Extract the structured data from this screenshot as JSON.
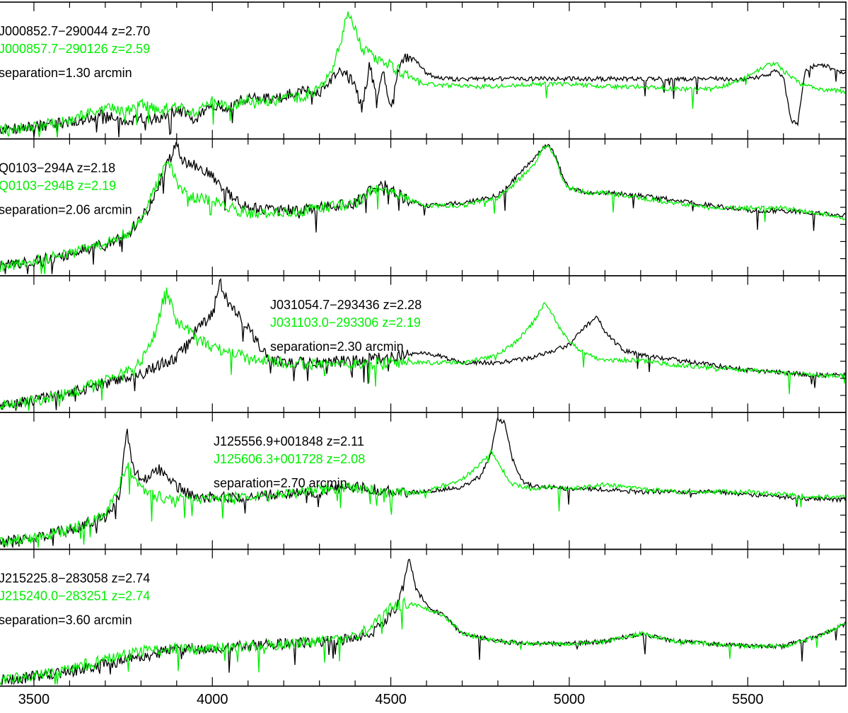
{
  "chart_data": {
    "type": "line",
    "xlabel": "",
    "ylabel": "",
    "xlim": [
      3405,
      5775
    ],
    "x_ticks_major": [
      3500,
      4000,
      4500,
      5000,
      5500
    ],
    "x_tick_labels": [
      "3500",
      "4000",
      "4500",
      "5000",
      "5500"
    ],
    "x_ticks_minor_step": 100,
    "y_scale": "relative flux within each panel, 0 to 1 (no y scale is printed)",
    "grid": false,
    "colors": {
      "primary": "#000000",
      "secondary": "#00ee00",
      "axes": "#000000"
    },
    "panels": [
      {
        "label_rows": {
          "row1": "J000852.7−290044   z=2.70",
          "row2": "J000857.7−290126   z=2.59",
          "row3": "separation=1.30 arcmin"
        },
        "series": [
          {
            "color": "#000000",
            "x": [
              3405,
              3500,
              3600,
              3700,
              3760,
              3800,
              3850,
              3900,
              3950,
              4000,
              4050,
              4100,
              4150,
              4200,
              4250,
              4300,
              4340,
              4370,
              4400,
              4420,
              4440,
              4460,
              4480,
              4500,
              4520,
              4540,
              4560,
              4600,
              4650,
              4700,
              4800,
              4900,
              5000,
              5100,
              5200,
              5300,
              5400,
              5500,
              5540,
              5580,
              5600,
              5620,
              5640,
              5660,
              5700,
              5775
            ],
            "y": [
              0.04,
              0.06,
              0.1,
              0.16,
              0.08,
              0.14,
              0.12,
              0.2,
              0.14,
              0.24,
              0.22,
              0.3,
              0.28,
              0.3,
              0.36,
              0.32,
              0.46,
              0.5,
              0.38,
              0.2,
              0.55,
              0.3,
              0.48,
              0.2,
              0.5,
              0.6,
              0.62,
              0.48,
              0.44,
              0.44,
              0.44,
              0.44,
              0.44,
              0.44,
              0.44,
              0.44,
              0.44,
              0.44,
              0.46,
              0.5,
              0.46,
              0.12,
              0.08,
              0.5,
              0.56,
              0.48
            ]
          },
          {
            "color": "#00ee00",
            "x": [
              3405,
              3500,
              3600,
              3700,
              3760,
              3800,
              3850,
              3900,
              3950,
              4000,
              4050,
              4100,
              4150,
              4200,
              4250,
              4300,
              4330,
              4360,
              4380,
              4400,
              4420,
              4450,
              4500,
              4550,
              4600,
              4700,
              4800,
              4900,
              5000,
              5100,
              5200,
              5300,
              5400,
              5450,
              5500,
              5550,
              5580,
              5600,
              5650,
              5700,
              5775
            ],
            "y": [
              0.04,
              0.06,
              0.12,
              0.22,
              0.18,
              0.24,
              0.2,
              0.22,
              0.18,
              0.26,
              0.22,
              0.28,
              0.26,
              0.28,
              0.3,
              0.36,
              0.48,
              0.72,
              1.0,
              0.84,
              0.68,
              0.62,
              0.55,
              0.46,
              0.4,
              0.38,
              0.38,
              0.4,
              0.4,
              0.38,
              0.38,
              0.36,
              0.36,
              0.4,
              0.46,
              0.54,
              0.56,
              0.5,
              0.4,
              0.36,
              0.34
            ]
          }
        ]
      },
      {
        "label_rows": {
          "row1": "Q0103−294A   z=2.18",
          "row2": "Q0103−294B   z=2.19",
          "row3": "separation=2.06 arcmin"
        },
        "series": [
          {
            "color": "#000000",
            "x": [
              3405,
              3500,
              3600,
              3700,
              3760,
              3800,
              3830,
              3860,
              3880,
              3900,
              3920,
              3950,
              4000,
              4050,
              4100,
              4200,
              4300,
              4400,
              4450,
              4480,
              4500,
              4550,
              4600,
              4700,
              4800,
              4850,
              4900,
              4920,
              4940,
              4960,
              4980,
              5000,
              5050,
              5100,
              5200,
              5300,
              5400,
              5500,
              5600,
              5700,
              5775
            ],
            "y": [
              0.04,
              0.08,
              0.14,
              0.22,
              0.3,
              0.42,
              0.54,
              0.76,
              0.88,
              1.0,
              0.86,
              0.84,
              0.76,
              0.6,
              0.5,
              0.48,
              0.5,
              0.54,
              0.66,
              0.68,
              0.64,
              0.56,
              0.52,
              0.54,
              0.6,
              0.74,
              0.88,
              0.96,
              1.0,
              0.92,
              0.76,
              0.66,
              0.62,
              0.62,
              0.6,
              0.56,
              0.52,
              0.48,
              0.48,
              0.46,
              0.44
            ]
          },
          {
            "color": "#00ee00",
            "x": [
              3405,
              3500,
              3600,
              3700,
              3760,
              3800,
              3830,
              3860,
              3880,
              3900,
              3920,
              3950,
              4000,
              4050,
              4100,
              4200,
              4300,
              4400,
              4450,
              4480,
              4500,
              4550,
              4600,
              4700,
              4800,
              4850,
              4900,
              4920,
              4940,
              4960,
              4980,
              5000,
              5050,
              5100,
              5200,
              5300,
              5400,
              5500,
              5600,
              5700,
              5775
            ],
            "y": [
              0.04,
              0.08,
              0.14,
              0.22,
              0.3,
              0.42,
              0.6,
              0.8,
              0.86,
              0.7,
              0.62,
              0.58,
              0.56,
              0.5,
              0.46,
              0.46,
              0.5,
              0.54,
              0.64,
              0.66,
              0.62,
              0.56,
              0.52,
              0.52,
              0.58,
              0.7,
              0.84,
              0.94,
              1.0,
              0.9,
              0.72,
              0.66,
              0.62,
              0.62,
              0.58,
              0.54,
              0.5,
              0.5,
              0.5,
              0.46,
              0.42
            ]
          }
        ]
      },
      {
        "label_rows": {
          "row1": "J031054.7−293436   z=2.28",
          "row2": "J031103.0−293306   z=2.19",
          "row3": "separation=2.30 arcmin"
        },
        "series": [
          {
            "color": "#000000",
            "x": [
              3405,
              3500,
              3600,
              3700,
              3800,
              3850,
              3900,
              3950,
              4000,
              4020,
              4050,
              4100,
              4150,
              4200,
              4300,
              4400,
              4500,
              4600,
              4700,
              4800,
              4900,
              5000,
              5050,
              5080,
              5100,
              5150,
              5200,
              5300,
              5400,
              5500,
              5600,
              5700,
              5775
            ],
            "y": [
              0.02,
              0.06,
              0.12,
              0.2,
              0.26,
              0.34,
              0.4,
              0.6,
              0.74,
              1.0,
              0.8,
              0.64,
              0.42,
              0.36,
              0.36,
              0.38,
              0.4,
              0.44,
              0.36,
              0.36,
              0.4,
              0.5,
              0.66,
              0.72,
              0.6,
              0.46,
              0.42,
              0.38,
              0.34,
              0.3,
              0.28,
              0.26,
              0.26
            ]
          },
          {
            "color": "#00ee00",
            "x": [
              3405,
              3500,
              3600,
              3700,
              3800,
              3840,
              3870,
              3880,
              3900,
              3950,
              4000,
              4100,
              4200,
              4300,
              4400,
              4500,
              4600,
              4700,
              4800,
              4850,
              4900,
              4930,
              4950,
              4980,
              5000,
              5050,
              5100,
              5200,
              5300,
              5400,
              5500,
              5600,
              5700,
              5775
            ],
            "y": [
              0.02,
              0.06,
              0.12,
              0.22,
              0.36,
              0.6,
              0.94,
              0.86,
              0.68,
              0.58,
              0.48,
              0.4,
              0.36,
              0.34,
              0.34,
              0.36,
              0.36,
              0.36,
              0.42,
              0.52,
              0.68,
              0.82,
              0.76,
              0.6,
              0.52,
              0.42,
              0.38,
              0.38,
              0.34,
              0.32,
              0.3,
              0.28,
              0.26,
              0.26
            ]
          }
        ]
      },
      {
        "label_rows": {
          "row1": "J125556.9+001848   z=2.11",
          "row2": "J125606.3+001728   z=2.08",
          "row3": "separation=2.70 arcmin"
        },
        "series": [
          {
            "color": "#000000",
            "x": [
              3405,
              3500,
              3600,
              3700,
              3740,
              3760,
              3780,
              3800,
              3850,
              3900,
              3950,
              4000,
              4100,
              4200,
              4300,
              4400,
              4500,
              4600,
              4700,
              4750,
              4780,
              4800,
              4820,
              4840,
              4870,
              4900,
              4950,
              5000,
              5100,
              5200,
              5300,
              5400,
              5500,
              5600,
              5700,
              5775
            ],
            "y": [
              0.02,
              0.06,
              0.12,
              0.22,
              0.4,
              0.9,
              0.6,
              0.5,
              0.6,
              0.46,
              0.38,
              0.38,
              0.38,
              0.4,
              0.42,
              0.46,
              0.42,
              0.42,
              0.46,
              0.54,
              0.72,
              1.0,
              0.96,
              0.68,
              0.5,
              0.46,
              0.46,
              0.44,
              0.44,
              0.42,
              0.42,
              0.42,
              0.4,
              0.38,
              0.36,
              0.36
            ]
          },
          {
            "color": "#00ee00",
            "x": [
              3405,
              3500,
              3600,
              3700,
              3740,
              3760,
              3780,
              3800,
              3850,
              3900,
              3950,
              4000,
              4100,
              4200,
              4300,
              4400,
              4500,
              4600,
              4700,
              4750,
              4780,
              4800,
              4820,
              4840,
              4870,
              4900,
              4950,
              5000,
              5100,
              5200,
              5300,
              5400,
              5500,
              5600,
              5700,
              5775
            ],
            "y": [
              0.02,
              0.06,
              0.12,
              0.24,
              0.46,
              0.64,
              0.52,
              0.44,
              0.38,
              0.36,
              0.36,
              0.36,
              0.38,
              0.4,
              0.44,
              0.46,
              0.4,
              0.42,
              0.52,
              0.64,
              0.74,
              0.66,
              0.56,
              0.48,
              0.46,
              0.44,
              0.46,
              0.44,
              0.48,
              0.44,
              0.42,
              0.42,
              0.42,
              0.4,
              0.38,
              0.38
            ]
          }
        ]
      },
      {
        "label_rows": {
          "row1": "J215225.8−283058   z=2.74",
          "row2": "J215240.0−283251   z=2.74",
          "row3": "separation=3.60 arcmin"
        },
        "series": [
          {
            "color": "#000000",
            "x": [
              3405,
              3500,
              3600,
              3700,
              3800,
              3900,
              4000,
              4100,
              4200,
              4300,
              4400,
              4450,
              4480,
              4500,
              4520,
              4540,
              4550,
              4570,
              4600,
              4650,
              4700,
              4800,
              4900,
              5000,
              5100,
              5200,
              5300,
              5400,
              5500,
              5600,
              5700,
              5775
            ],
            "y": [
              0.02,
              0.04,
              0.08,
              0.14,
              0.2,
              0.26,
              0.26,
              0.28,
              0.3,
              0.32,
              0.34,
              0.4,
              0.46,
              0.54,
              0.6,
              0.82,
              1.0,
              0.74,
              0.6,
              0.52,
              0.38,
              0.32,
              0.3,
              0.3,
              0.32,
              0.38,
              0.32,
              0.3,
              0.28,
              0.28,
              0.36,
              0.46
            ]
          },
          {
            "color": "#00ee00",
            "x": [
              3405,
              3500,
              3600,
              3700,
              3800,
              3900,
              4000,
              4100,
              4200,
              4300,
              4400,
              4450,
              4480,
              4500,
              4520,
              4540,
              4550,
              4570,
              4600,
              4650,
              4700,
              4800,
              4900,
              5000,
              5100,
              5200,
              5300,
              5400,
              5500,
              5600,
              5700,
              5775
            ],
            "y": [
              0.02,
              0.04,
              0.1,
              0.18,
              0.24,
              0.26,
              0.26,
              0.28,
              0.3,
              0.32,
              0.36,
              0.44,
              0.52,
              0.58,
              0.6,
              0.62,
              0.62,
              0.6,
              0.58,
              0.52,
              0.38,
              0.32,
              0.3,
              0.3,
              0.32,
              0.38,
              0.32,
              0.3,
              0.28,
              0.28,
              0.36,
              0.46
            ]
          }
        ]
      }
    ]
  }
}
